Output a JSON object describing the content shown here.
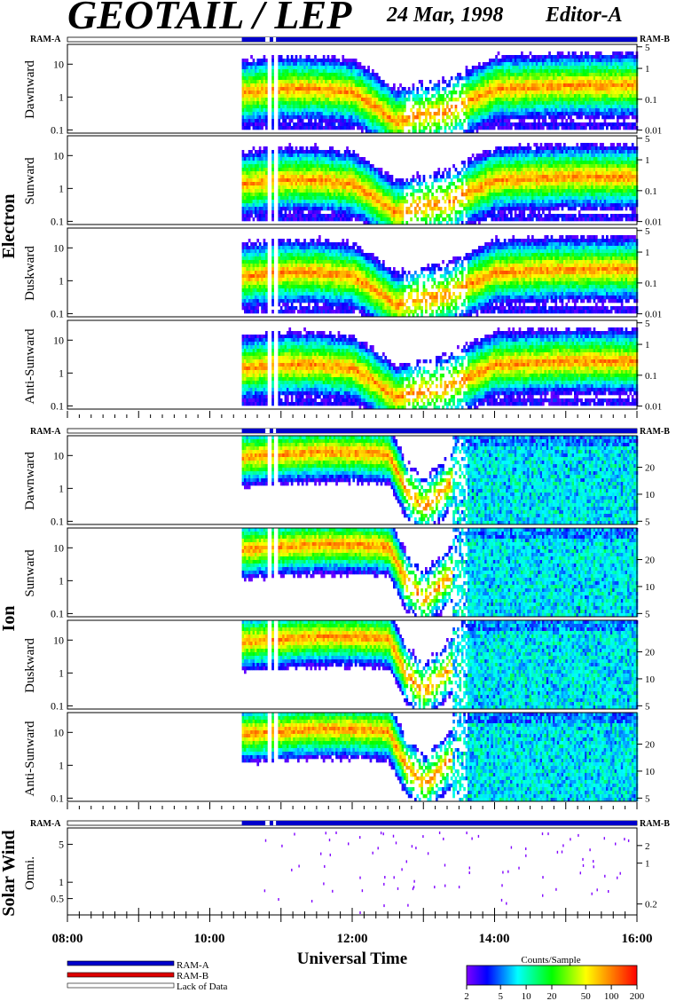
{
  "header": {
    "title": "GEOTAIL / LEP",
    "date": "24 Mar, 1998",
    "editor": "Editor-A"
  },
  "ram": {
    "left": "RAM-A",
    "right": "RAM-B"
  },
  "species": {
    "electron": "Electron",
    "ion": "Ion",
    "solar": "Solar Wind"
  },
  "panels": {
    "electron": [
      {
        "label": "Dawnward"
      },
      {
        "label": "Sunward"
      },
      {
        "label": "Duskward"
      },
      {
        "label": "Anti-Sunward"
      }
    ],
    "ion": [
      {
        "label": "Dawnward"
      },
      {
        "label": "Sunward"
      },
      {
        "label": "Duskward"
      },
      {
        "label": "Anti-Sunward"
      }
    ],
    "solar": [
      {
        "label": "Omni."
      }
    ]
  },
  "axes": {
    "left_ticks_log": [
      "10",
      "1",
      "0.1"
    ],
    "electron_right_ticks": [
      "5",
      "1",
      "0.1",
      "0.01"
    ],
    "ion_right_ticks": [
      "20",
      "10",
      "5"
    ],
    "solar_left_ticks": [
      "5",
      "1",
      "0.5"
    ],
    "solar_right_ticks": [
      "2",
      "1",
      "0.2"
    ],
    "time_ticks": [
      "08:00",
      "10:00",
      "12:00",
      "14:00",
      "16:00"
    ],
    "xlabel": "Universal Time"
  },
  "legend": {
    "items": [
      {
        "label": "RAM-A",
        "color": "#0000cc"
      },
      {
        "label": "RAM-B",
        "color": "#dd0000"
      },
      {
        "label": "Lack of Data",
        "color": "#ffffff"
      }
    ]
  },
  "colorbar": {
    "title": "Counts/Sample",
    "ticks": [
      "2",
      "5",
      "10",
      "20",
      "50",
      "100",
      "200"
    ]
  },
  "chart_data": {
    "type": "heatmap",
    "x_range_ut_hours": [
      8,
      16
    ],
    "data_start_ut_hours": 10.45,
    "data_gaps_ut_hours": [
      [
        10.78,
        10.84
      ],
      [
        10.89,
        10.93
      ]
    ],
    "electron": {
      "ylim": [
        0.08,
        40
      ],
      "yscale": "log",
      "band_center": [
        [
          10.45,
          1.5
        ],
        [
          11.0,
          2.0
        ],
        [
          11.5,
          2.0
        ],
        [
          12.0,
          1.5
        ],
        [
          12.3,
          0.6
        ],
        [
          12.6,
          0.2
        ],
        [
          12.9,
          0.3
        ],
        [
          13.3,
          0.4
        ],
        [
          13.6,
          0.8
        ],
        [
          14.0,
          2.0
        ],
        [
          15.0,
          2.5
        ],
        [
          16.0,
          2.5
        ]
      ]
    },
    "ion": {
      "ylim": [
        0.08,
        40
      ],
      "yscale": "log",
      "band_center": [
        [
          10.45,
          10
        ],
        [
          11.0,
          12
        ],
        [
          11.5,
          14
        ],
        [
          12.0,
          14
        ],
        [
          12.5,
          12
        ],
        [
          12.75,
          1.0
        ],
        [
          13.0,
          0.3
        ],
        [
          13.5,
          3
        ],
        [
          14.0,
          10
        ],
        [
          15.0,
          8
        ],
        [
          16.0,
          8
        ]
      ]
    },
    "solar_wind": {
      "ylim": [
        0.25,
        10
      ],
      "yscale": "log",
      "points": "sparse"
    }
  }
}
